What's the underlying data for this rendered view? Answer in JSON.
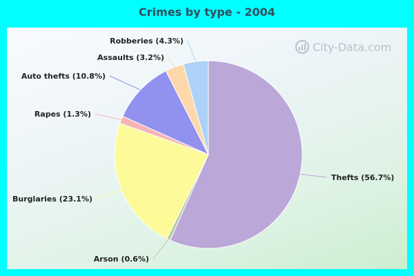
{
  "title": "Crimes by type - 2004",
  "watermark": "City-Data.com",
  "chart_data": {
    "type": "pie",
    "title": "Crimes by type - 2004",
    "slices": [
      {
        "label": "Thefts (56.7%)",
        "value": 56.7,
        "color": "#bba7d8"
      },
      {
        "label": "Arson (0.6%)",
        "value": 0.6,
        "color": "#b4cba4"
      },
      {
        "label": "Burglaries (23.1%)",
        "value": 23.1,
        "color": "#fdfa99"
      },
      {
        "label": "Rapes (1.3%)",
        "value": 1.3,
        "color": "#f7b4b4"
      },
      {
        "label": "Auto thefts (10.8%)",
        "value": 10.8,
        "color": "#9191ef"
      },
      {
        "label": "Assaults (3.2%)",
        "value": 3.2,
        "color": "#fdd8aa"
      },
      {
        "label": "Robberies (4.3%)",
        "value": 4.3,
        "color": "#acd3f7"
      }
    ]
  }
}
